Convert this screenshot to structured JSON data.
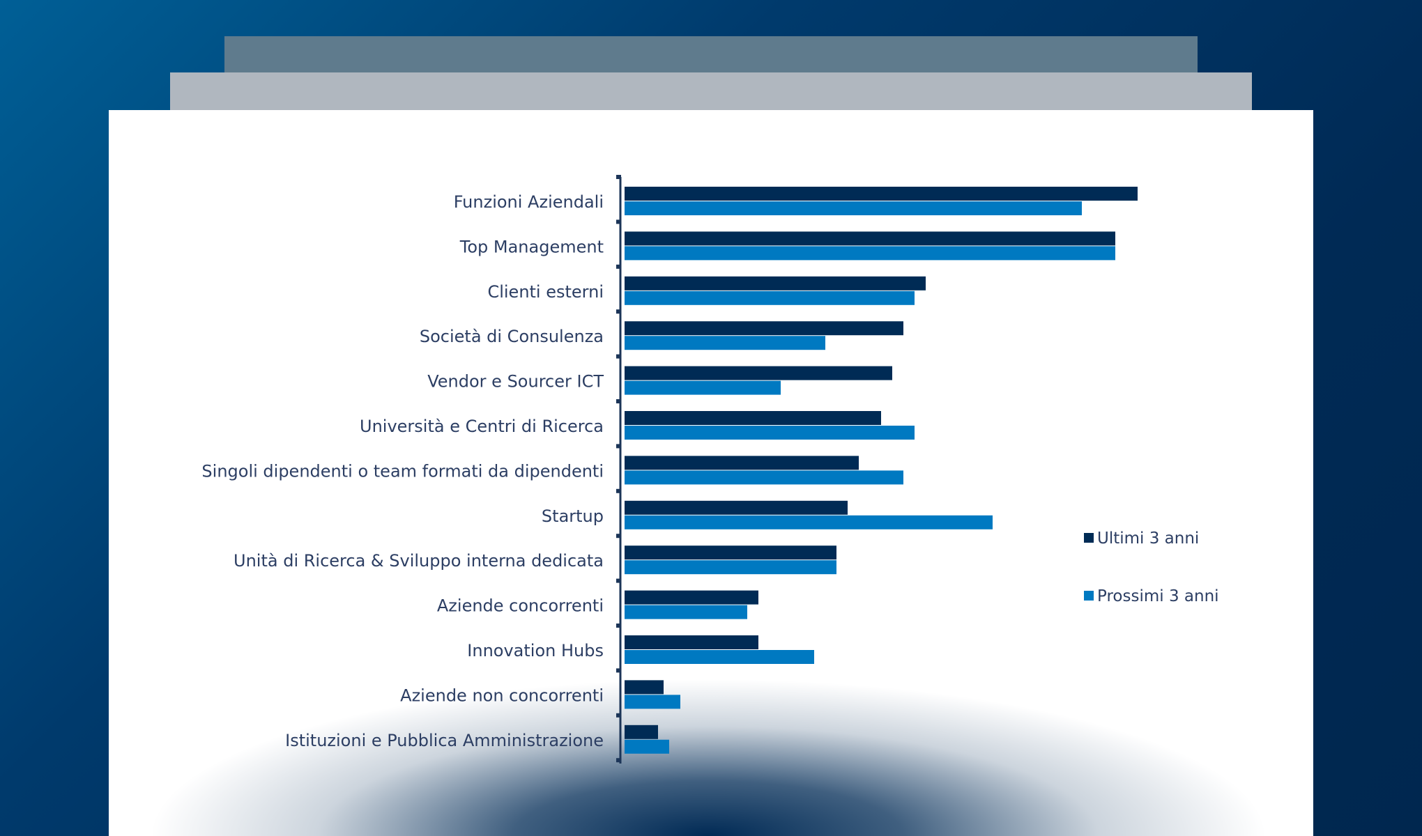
{
  "chart_data": {
    "type": "bar",
    "orientation": "horizontal",
    "categories": [
      "Funzioni Aziendali",
      "Top Management",
      "Clienti esterni",
      "Società di Consulenza",
      "Vendor e Sourcer ICT",
      "Università e Centri di Ricerca",
      "Singoli dipendenti o team formati da dipendenti",
      "Startup",
      "Unità di Ricerca & Sviluppo interna dedicata",
      "Aziende concorrenti",
      "Innovation Hubs",
      "Aziende non concorrenti",
      "Istituzioni e Pubblica Amministrazione"
    ],
    "series": [
      {
        "name": "Ultimi 3 anni",
        "color": "#002b55",
        "values": [
          46,
          44,
          27,
          25,
          24,
          23,
          21,
          20,
          19,
          12,
          12,
          3.5,
          3
        ]
      },
      {
        "name": "Prossimi 3 anni",
        "color": "#0079c1",
        "values": [
          41,
          44,
          26,
          18,
          14,
          26,
          25,
          33,
          19,
          11,
          17,
          5,
          4
        ]
      }
    ],
    "xlim": [
      0,
      60
    ],
    "grid": false,
    "x_axis_visible": false,
    "legend_position": "right"
  }
}
